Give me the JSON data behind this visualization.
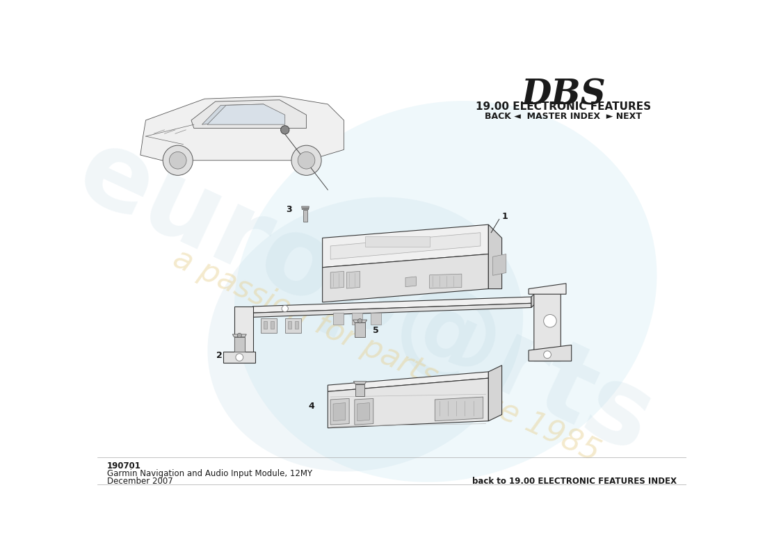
{
  "title_model": "DBS",
  "title_section": "19.00 ELECTRONIC FEATURES",
  "title_nav": "BACK ◄  MASTER INDEX  ► NEXT",
  "part_number": "190701",
  "part_name": "Garmin Navigation and Audio Input Module, 12MY",
  "part_date": "December 2007",
  "back_link": "back to 19.00 ELECTRONIC FEATURES INDEX",
  "bg_color": "#ffffff",
  "lc": "#333333",
  "lc_light": "#999999",
  "fill_top": "#f5f5f5",
  "fill_front": "#e8e8e8",
  "fill_side": "#d8d8d8",
  "fill_dark": "#c8c8c8"
}
